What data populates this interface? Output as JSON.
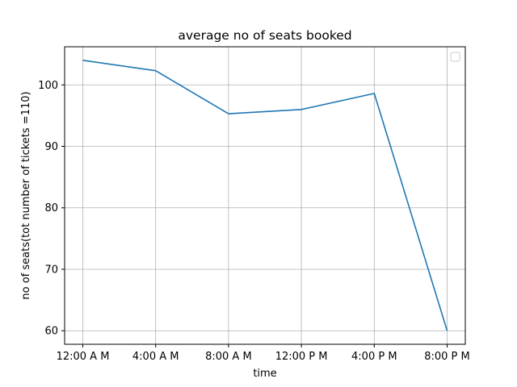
{
  "chart_data": {
    "type": "line",
    "title": "average no of seats booked",
    "xlabel": "time",
    "ylabel": "no of seats(tot number of tickets =110)",
    "categories": [
      "12:00 A M",
      "4:00 A M",
      "8:00 A M",
      "12:00 P M",
      "4:00 P M",
      "8:00 P M"
    ],
    "series": [
      {
        "values": [
          104.0,
          102.3,
          95.3,
          96.0,
          98.6,
          60.0
        ],
        "color": "#1f77b4"
      }
    ],
    "ylim": [
      57.8,
      106.2
    ],
    "yticks": [
      60,
      70,
      80,
      90,
      100
    ],
    "grid": true,
    "legend": "top-right",
    "legend_entries": []
  }
}
